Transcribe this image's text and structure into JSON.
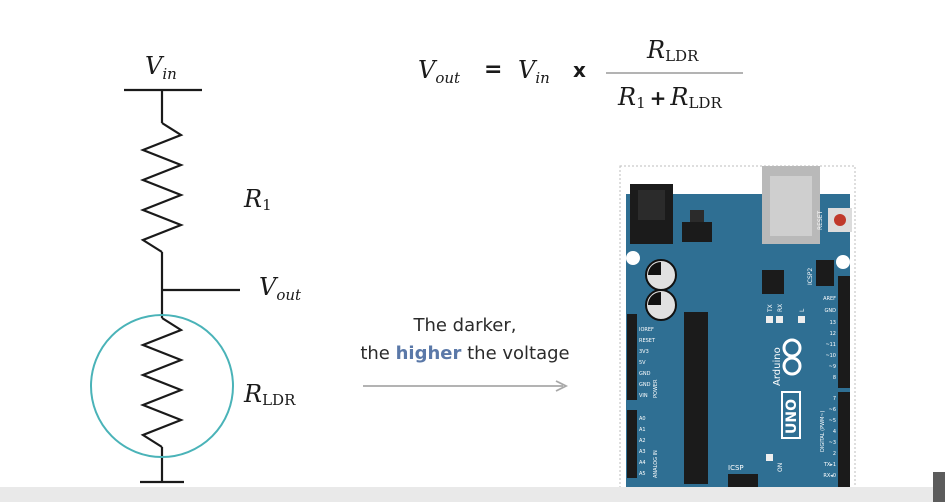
{
  "circuit": {
    "vin_main": "V",
    "vin_sub": "in",
    "r1_main": "R",
    "r1_sub": "1",
    "vout_main": "V",
    "vout_sub": "out",
    "rldr_main": "R",
    "rldr_sub": "LDR"
  },
  "formula": {
    "lhs_main": "V",
    "lhs_sub": "out",
    "equals": "=",
    "vin_main": "V",
    "vin_sub": "in",
    "times": "x",
    "num_main": "R",
    "num_sub": "LDR",
    "den_r1_main": "R",
    "den_r1_sub": "1",
    "den_plus": "+",
    "den_r2_main": "R",
    "den_r2_sub": "LDR"
  },
  "caption": {
    "line1": "The darker,",
    "line2_pre": "the ",
    "line2_highlight": "higher",
    "line2_post": " the voltage"
  },
  "board": {
    "reset": "RESET",
    "icsp2": "ICSP2",
    "tx": "TX",
    "rx": "RX",
    "l": "L",
    "aref": "AREF",
    "gnd": "GND",
    "arduino": "Arduino",
    "uno": "UNO",
    "digital": "DIGITAL (PWM~)",
    "on": "ON",
    "icsp": "ICSP",
    "ioref": "IOREF",
    "reset_pin": "RESET",
    "v33": "3V3",
    "v5": "5V",
    "gnd1": "GND",
    "gnd2": "GND",
    "vin": "VIN",
    "power": "POWER",
    "a0": "A0",
    "a1": "A1",
    "a2": "A2",
    "a3": "A3",
    "a4": "A4",
    "a5": "A5",
    "analog_in": "ANALOG IN",
    "d13": "13",
    "d12": "12",
    "d11": "~11",
    "d10": "~10",
    "d9": "~9",
    "d8": "8",
    "d7": "7",
    "d6": "~6",
    "d5": "~5",
    "d4": "4",
    "d3": "~3",
    "d2": "2",
    "tx1": "TX▸1",
    "rx0": "RX◂0",
    "colors": {
      "pcb": "#2f6f93",
      "header": "#1b1b1b",
      "usb": "#b9b9b9",
      "reset_button": "#c0392b",
      "silk": "#ffffff"
    }
  },
  "colors": {
    "wire": "#1a1a1a",
    "ldr_circle": "#4ab3b8",
    "arrow": "#a8a8a8",
    "highlight": "#5a78a8"
  }
}
